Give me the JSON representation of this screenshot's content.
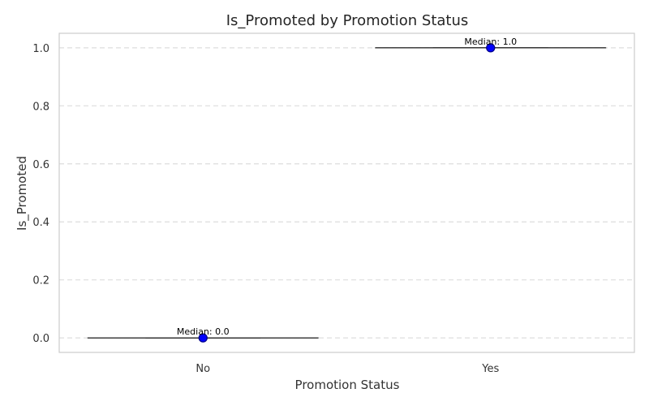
{
  "chart_data": {
    "type": "box",
    "title": "Is_Promoted by Promotion Status",
    "xlabel": "Promotion Status",
    "ylabel": "Is_Promoted",
    "categories": [
      "No",
      "Yes"
    ],
    "ylim": [
      -0.05,
      1.05
    ],
    "yticks": [
      0.0,
      0.2,
      0.4,
      0.6,
      0.8,
      1.0
    ],
    "ytick_labels": [
      "0.0",
      "0.2",
      "0.4",
      "0.6",
      "0.8",
      "1.0"
    ],
    "grid": "y-dashed",
    "boxes": [
      {
        "category": "No",
        "min": 0.0,
        "q1": 0.0,
        "median": 0.0,
        "q3": 0.0,
        "max": 0.0,
        "median_label": "Median: 0.0"
      },
      {
        "category": "Yes",
        "min": 1.0,
        "q1": 1.0,
        "median": 1.0,
        "q3": 1.0,
        "max": 1.0,
        "median_label": "Median: 1.0"
      }
    ],
    "colors": {
      "box_line": "#333333",
      "median_marker_fill": "#0000ff",
      "median_marker_edge": "#00008b",
      "grid": "#dddddd",
      "frame": "#cccccc"
    }
  }
}
